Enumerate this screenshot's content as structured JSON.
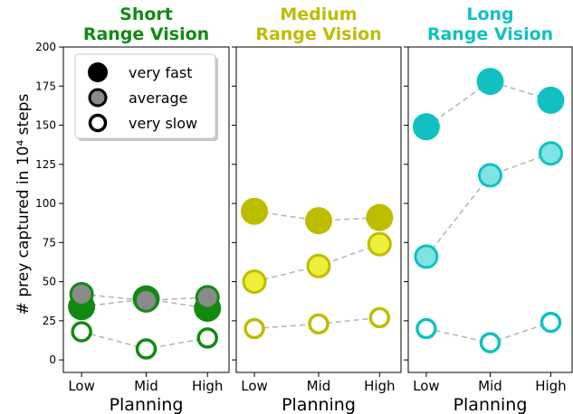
{
  "chart_data": {
    "type": "scatter",
    "ylabel": "# prey captured in 10⁴ steps",
    "ylim": [
      -8,
      200
    ],
    "yticks": [
      "0",
      "25",
      "50",
      "75",
      "100",
      "125",
      "150",
      "175",
      "200"
    ],
    "legend": {
      "placement": "top-left",
      "entries": [
        "very fast",
        "average",
        "very slow"
      ]
    },
    "panels": [
      {
        "title_line1": "Short",
        "title_line2": "Range Vision",
        "color": "#128a12",
        "light_color": "#8a8a8a",
        "xlabel": "Planning",
        "categories": [
          "Low",
          "Mid",
          "High"
        ],
        "series": [
          {
            "name": "very fast",
            "values": [
              34,
              39,
              33
            ]
          },
          {
            "name": "average",
            "values": [
              42,
              38,
              40
            ]
          },
          {
            "name": "very slow",
            "values": [
              18,
              7,
              14
            ]
          }
        ]
      },
      {
        "title_line1": "Medium",
        "title_line2": "Range Vision",
        "color": "#bdbd00",
        "light_color": "#efef3a",
        "xlabel": "Planning",
        "categories": [
          "Low",
          "Mid",
          "High"
        ],
        "series": [
          {
            "name": "very fast",
            "values": [
              95,
              89,
              91
            ]
          },
          {
            "name": "average",
            "values": [
              50,
              60,
              74
            ]
          },
          {
            "name": "very slow",
            "values": [
              20,
              23,
              27
            ]
          }
        ]
      },
      {
        "title_line1": "Long",
        "title_line2": "Range Vision",
        "color": "#11c1c1",
        "light_color": "#7fe3e3",
        "xlabel": "Planning",
        "categories": [
          "Low",
          "Mid",
          "High"
        ],
        "series": [
          {
            "name": "very fast",
            "values": [
              149,
              178,
              166
            ]
          },
          {
            "name": "average",
            "values": [
              66,
              118,
              132
            ]
          },
          {
            "name": "very slow",
            "values": [
              20,
              11,
              24
            ]
          }
        ]
      }
    ]
  }
}
